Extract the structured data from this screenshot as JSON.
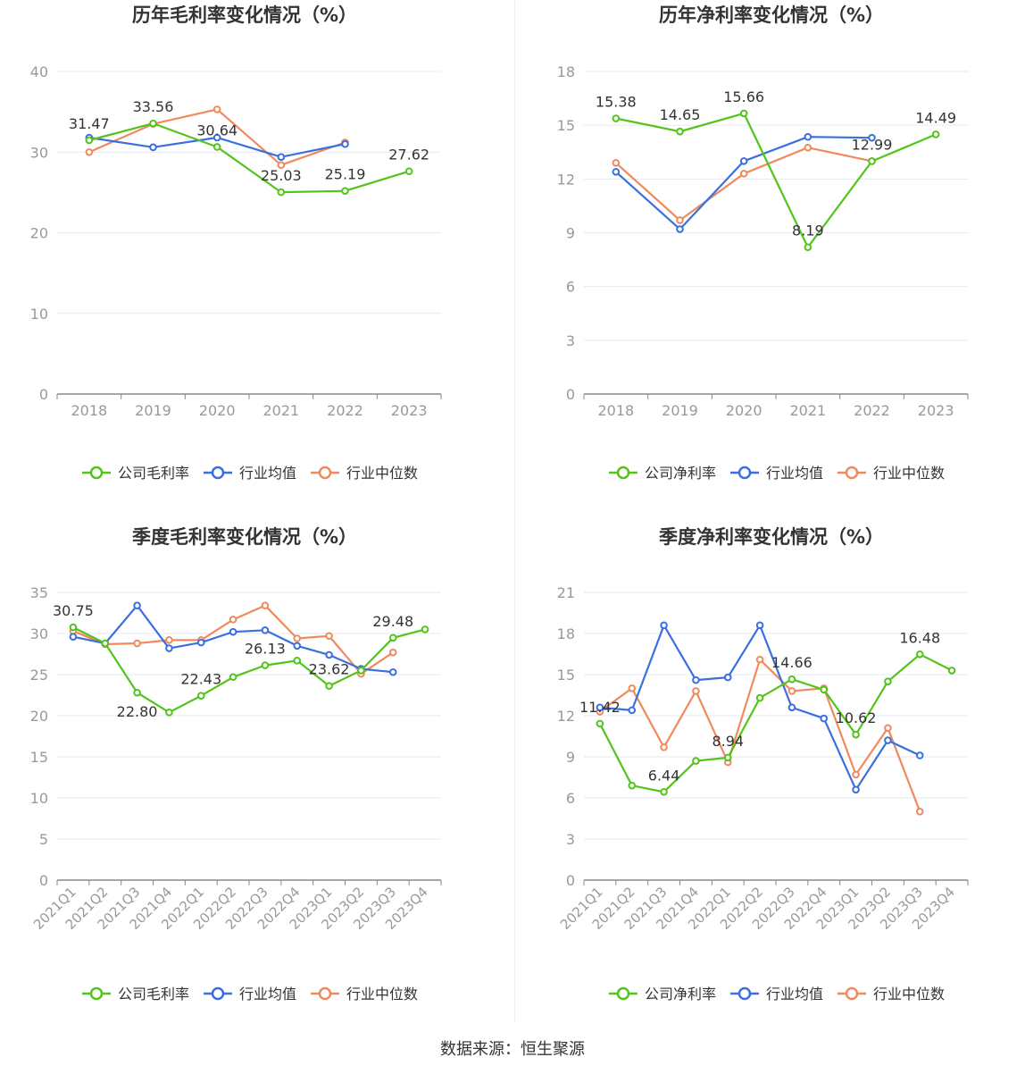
{
  "source_label": "数据来源：恒生聚源",
  "colors": {
    "company": "#52c41a",
    "avg": "#3a6fe0",
    "median": "#f08a5d",
    "grid": "#e6e9f4",
    "axis": "#999999",
    "title": "#333333"
  },
  "chart_data": [
    {
      "type": "line",
      "title": "历年毛利率变化情况（%）",
      "categories": [
        "2018",
        "2019",
        "2020",
        "2021",
        "2022",
        "2023"
      ],
      "ylim": [
        0,
        40
      ],
      "yticks": [
        0,
        10,
        20,
        30,
        40
      ],
      "grid": true,
      "legend_position": "bottom",
      "series": [
        {
          "name": "公司毛利率",
          "key": "company",
          "values": [
            31.47,
            33.56,
            30.64,
            25.03,
            25.19,
            27.62
          ]
        },
        {
          "name": "行业均值",
          "key": "avg",
          "values": [
            31.8,
            30.6,
            31.8,
            29.4,
            31.0,
            null
          ]
        },
        {
          "name": "行业中位数",
          "key": "median",
          "values": [
            30.0,
            33.5,
            35.3,
            28.4,
            31.2,
            null
          ]
        }
      ],
      "data_labels": [
        {
          "index": 0,
          "text": "31.47",
          "pos": "above"
        },
        {
          "index": 1,
          "text": "33.56",
          "pos": "above"
        },
        {
          "index": 2,
          "text": "30.64",
          "pos": "above"
        },
        {
          "index": 3,
          "text": "25.03",
          "pos": "above"
        },
        {
          "index": 4,
          "text": "25.19",
          "pos": "above"
        },
        {
          "index": 5,
          "text": "27.62",
          "pos": "above"
        }
      ]
    },
    {
      "type": "line",
      "title": "历年净利率变化情况（%）",
      "categories": [
        "2018",
        "2019",
        "2020",
        "2021",
        "2022",
        "2023"
      ],
      "ylim": [
        0,
        18
      ],
      "yticks": [
        0,
        3,
        6,
        9,
        12,
        15,
        18
      ],
      "grid": true,
      "legend_position": "bottom",
      "series": [
        {
          "name": "公司净利率",
          "key": "company",
          "values": [
            15.38,
            14.65,
            15.66,
            8.19,
            12.99,
            14.49
          ]
        },
        {
          "name": "行业均值",
          "key": "avg",
          "values": [
            12.4,
            9.2,
            13.0,
            14.35,
            14.3,
            null
          ]
        },
        {
          "name": "行业中位数",
          "key": "median",
          "values": [
            12.9,
            9.7,
            12.3,
            13.75,
            13.0,
            null
          ]
        }
      ],
      "data_labels": [
        {
          "index": 0,
          "text": "15.38",
          "pos": "above"
        },
        {
          "index": 1,
          "text": "14.65",
          "pos": "above"
        },
        {
          "index": 2,
          "text": "15.66",
          "pos": "above"
        },
        {
          "index": 3,
          "text": "8.19",
          "pos": "above"
        },
        {
          "index": 4,
          "text": "12.99",
          "pos": "above"
        },
        {
          "index": 5,
          "text": "14.49",
          "pos": "above"
        }
      ]
    },
    {
      "type": "line",
      "title": "季度毛利率变化情况（%）",
      "categories": [
        "2021Q1",
        "2021Q2",
        "2021Q3",
        "2021Q4",
        "2022Q1",
        "2022Q2",
        "2022Q3",
        "2022Q4",
        "2023Q1",
        "2023Q2",
        "2023Q3",
        "2023Q4"
      ],
      "ylim": [
        0,
        35
      ],
      "yticks": [
        0,
        5,
        10,
        15,
        20,
        25,
        30,
        35
      ],
      "grid": true,
      "legend_position": "bottom",
      "series": [
        {
          "name": "公司毛利率",
          "key": "company",
          "values": [
            30.75,
            28.8,
            22.8,
            20.4,
            22.43,
            24.7,
            26.13,
            26.7,
            23.62,
            25.5,
            29.48,
            30.5
          ]
        },
        {
          "name": "行业均值",
          "key": "avg",
          "values": [
            29.6,
            28.8,
            33.4,
            28.2,
            28.9,
            30.2,
            30.4,
            28.5,
            27.4,
            25.7,
            25.3,
            null
          ]
        },
        {
          "name": "行业中位数",
          "key": "median",
          "values": [
            30.3,
            28.7,
            28.8,
            29.2,
            29.2,
            31.7,
            33.4,
            29.4,
            29.7,
            25.1,
            27.7,
            null
          ]
        }
      ],
      "data_labels": [
        {
          "index": 0,
          "text": "30.75",
          "pos": "above"
        },
        {
          "index": 2,
          "text": "22.80",
          "pos": "below"
        },
        {
          "index": 4,
          "text": "22.43",
          "pos": "above"
        },
        {
          "index": 6,
          "text": "26.13",
          "pos": "above"
        },
        {
          "index": 8,
          "text": "23.62",
          "pos": "above"
        },
        {
          "index": 10,
          "text": "29.48",
          "pos": "above"
        }
      ]
    },
    {
      "type": "line",
      "title": "季度净利率变化情况（%）",
      "categories": [
        "2021Q1",
        "2021Q2",
        "2021Q3",
        "2021Q4",
        "2022Q1",
        "2022Q2",
        "2022Q3",
        "2022Q4",
        "2023Q1",
        "2023Q2",
        "2023Q3",
        "2023Q4"
      ],
      "ylim": [
        0,
        21
      ],
      "yticks": [
        0,
        3,
        6,
        9,
        12,
        15,
        18,
        21
      ],
      "grid": true,
      "legend_position": "bottom",
      "series": [
        {
          "name": "公司净利率",
          "key": "company",
          "values": [
            11.42,
            6.9,
            6.44,
            8.7,
            8.94,
            13.3,
            14.66,
            13.9,
            10.62,
            14.5,
            16.48,
            15.3
          ]
        },
        {
          "name": "行业均值",
          "key": "avg",
          "values": [
            12.6,
            12.4,
            18.6,
            14.6,
            14.8,
            18.6,
            12.6,
            11.8,
            6.6,
            10.2,
            9.1,
            null
          ]
        },
        {
          "name": "行业中位数",
          "key": "median",
          "values": [
            12.3,
            14.0,
            9.7,
            13.8,
            8.6,
            16.1,
            13.8,
            14.0,
            7.7,
            11.1,
            5.0,
            null
          ]
        }
      ],
      "data_labels": [
        {
          "index": 0,
          "text": "11.42",
          "pos": "above"
        },
        {
          "index": 2,
          "text": "6.44",
          "pos": "above"
        },
        {
          "index": 4,
          "text": "8.94",
          "pos": "above"
        },
        {
          "index": 6,
          "text": "14.66",
          "pos": "above"
        },
        {
          "index": 8,
          "text": "10.62",
          "pos": "above"
        },
        {
          "index": 10,
          "text": "16.48",
          "pos": "above"
        }
      ]
    }
  ]
}
